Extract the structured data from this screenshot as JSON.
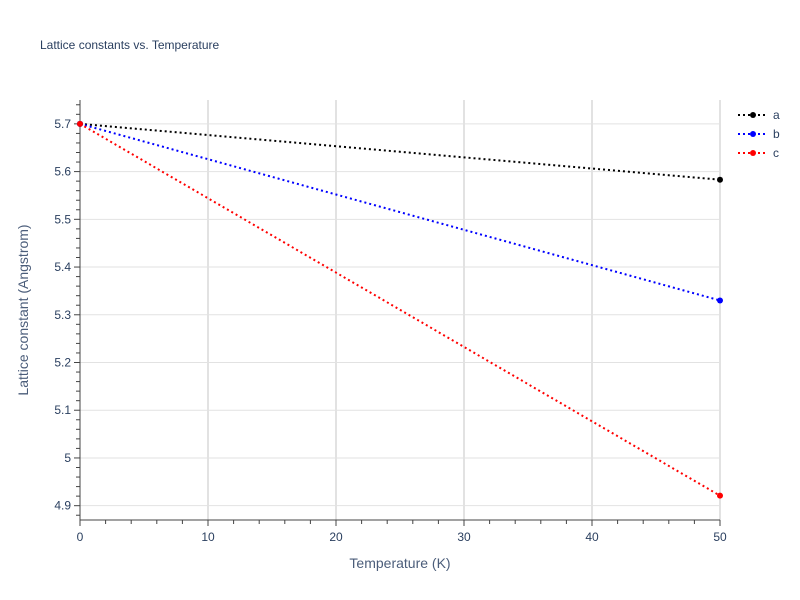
{
  "chart_data": {
    "type": "line",
    "title": "Lattice constants vs. Temperature",
    "xlabel": "Temperature (K)",
    "ylabel": "Lattice constant (Angstrom)",
    "xlim": [
      0,
      50
    ],
    "ylim": [
      4.87,
      5.75
    ],
    "xticks": [
      0,
      10,
      20,
      30,
      40,
      50
    ],
    "xtick_labels": [
      "0",
      "10",
      "20",
      "30",
      "40",
      "50"
    ],
    "yticks": [
      4.9,
      5.0,
      5.1,
      5.2,
      5.3,
      5.4,
      5.5,
      5.6,
      5.7
    ],
    "ytick_labels": [
      "4.9",
      "5",
      "5.1",
      "5.2",
      "5.3",
      "5.4",
      "5.5",
      "5.6",
      "5.7"
    ],
    "grid": true,
    "legend_position": "top-right",
    "line_style": "dotted",
    "series": [
      {
        "name": "a",
        "color": "#000000",
        "x": [
          0,
          50
        ],
        "y": [
          5.7,
          5.583
        ]
      },
      {
        "name": "b",
        "color": "#0000ff",
        "x": [
          0,
          50
        ],
        "y": [
          5.7,
          5.33
        ]
      },
      {
        "name": "c",
        "color": "#ff0000",
        "x": [
          0,
          50
        ],
        "y": [
          5.7,
          4.921
        ]
      }
    ]
  }
}
